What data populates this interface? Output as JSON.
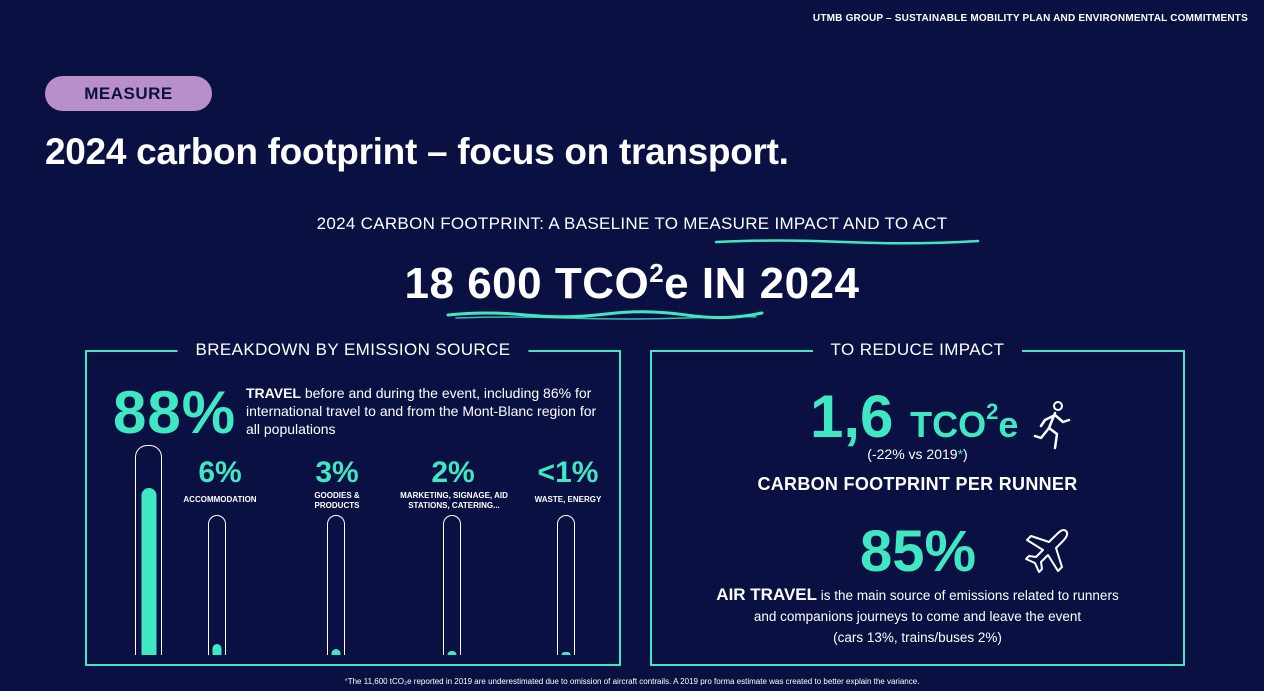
{
  "header": {
    "top_right": "UTMB GROUP – SUSTAINABLE MOBILITY PLAN AND ENVIRONMENTAL COMMITMENTS"
  },
  "tag": {
    "label": "MEASURE"
  },
  "title": "2024 carbon footprint – focus on transport.",
  "subtitle": {
    "prefix": "2024 CARBON FOOTPRINT: A BASELINE TO ",
    "highlight": "MEASURE IMPACT AND TO ACT"
  },
  "total": {
    "prefix": "18 ",
    "value": "600 TCO",
    "sup": "2",
    "suffix": "e IN 2024"
  },
  "colors": {
    "background": "#0a1142",
    "accent": "#3fe8c2",
    "tag": "#b88fc8"
  },
  "breakdown": {
    "title": "BREAKDOWN BY EMISSION SOURCE",
    "travel": {
      "pct": "88%",
      "label": "TRAVEL",
      "desc": " before and during the event, including 86% for international travel to and from the Mont-Blanc region for all populations"
    },
    "bars": [
      {
        "pct": "6%",
        "label": "ACCOMMODATION",
        "share": 6
      },
      {
        "pct": "3%",
        "label": "GOODIES & PRODUCTS",
        "share": 3
      },
      {
        "pct": "2%",
        "label": "MARKETING, SIGNAGE, AID STATIONS, CATERING...",
        "share": 2
      },
      {
        "pct": "<1%",
        "label": "WASTE, ENERGY",
        "share": 1
      }
    ],
    "travel_share": 88
  },
  "reduce": {
    "title": "TO REDUCE IMPACT",
    "runner_value": "1,6",
    "runner_unit": "TCO",
    "runner_sup": "2",
    "runner_unit_suffix": "e",
    "runner_delta_prefix": "(-22% vs 2019",
    "runner_delta_star": "*",
    "runner_delta_suffix": ")",
    "runner_label": "CARBON FOOTPRINT PER RUNNER",
    "runner_icon": "runner-icon",
    "air_pct": "85%",
    "air_icon": "airplane-icon",
    "air_label": "AIR TRAVEL",
    "air_desc1": " is the main source of emissions related to runners",
    "air_desc2": "and companions journeys to come and leave the event",
    "air_desc3": "(cars 13%, trains/buses 2%)"
  },
  "footnote": {
    "star": "*",
    "text": "The 11,600 tCO₂e reported in 2019 are underestimated due to omission of aircraft contrails. A 2019 pro forma estimate was created to better explain the variance."
  }
}
